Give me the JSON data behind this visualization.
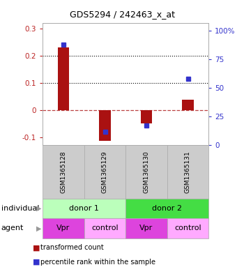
{
  "title": "GDS5294 / 242463_x_at",
  "samples": [
    "GSM1365128",
    "GSM1365129",
    "GSM1365130",
    "GSM1365131"
  ],
  "bar_values": [
    0.23,
    -0.115,
    -0.05,
    0.038
  ],
  "dot_values_pct": [
    88,
    12,
    17,
    58
  ],
  "bar_color": "#aa1111",
  "dot_color": "#3333cc",
  "ylim_left": [
    -0.13,
    0.32
  ],
  "ylim_right": [
    0,
    106.67
  ],
  "yticks_left": [
    -0.1,
    0.0,
    0.1,
    0.2,
    0.3
  ],
  "ytick_labels_left": [
    "-0.1",
    "0",
    "0.1",
    "0.2",
    "0.3"
  ],
  "yticks_right": [
    0,
    25,
    50,
    75,
    100
  ],
  "ytick_labels_right": [
    "0",
    "25",
    "50",
    "75",
    "100%"
  ],
  "hlines": [
    0.1,
    0.2
  ],
  "individuals": [
    {
      "label": "donor 1",
      "span": [
        0,
        2
      ],
      "color": "#bbffbb"
    },
    {
      "label": "donor 2",
      "span": [
        2,
        4
      ],
      "color": "#44dd44"
    }
  ],
  "agents": [
    {
      "label": "Vpr",
      "col": 0,
      "color": "#dd44dd"
    },
    {
      "label": "control",
      "col": 1,
      "color": "#ffaaff"
    },
    {
      "label": "Vpr",
      "col": 2,
      "color": "#dd44dd"
    },
    {
      "label": "control",
      "col": 3,
      "color": "#ffaaff"
    }
  ],
  "row_label_individual": "individual",
  "row_label_agent": "agent",
  "legend_bar": "transformed count",
  "legend_dot": "percentile rank within the sample",
  "tick_label_color_left": "#bb2222",
  "tick_label_color_right": "#2222bb",
  "bg_color": "#ffffff",
  "sample_box_color": "#cccccc",
  "arrow_color": "#999999"
}
